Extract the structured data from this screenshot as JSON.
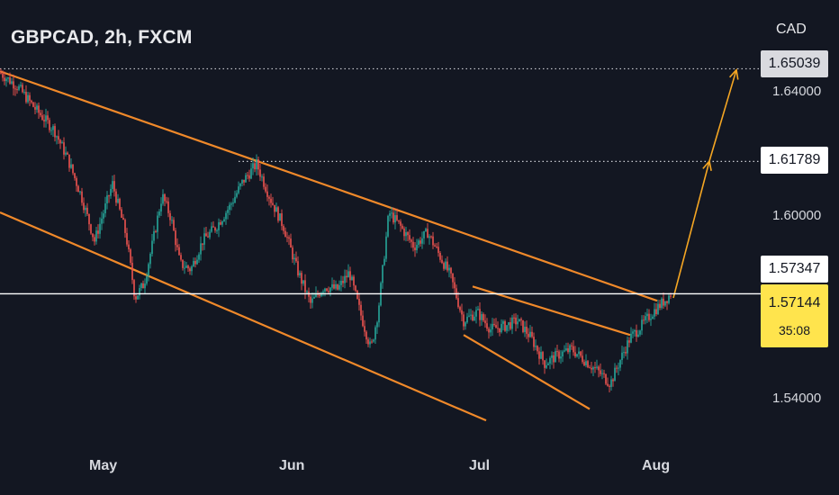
{
  "header": {
    "title": "GBPCAD, 2h, FXCM",
    "currency": "CAD"
  },
  "colors": {
    "background": "#131722",
    "channel": "#f0892a",
    "projection": "#f5a623",
    "up_candle": "#26a69a",
    "down_candle": "#ef5350",
    "current_price_line": "#ffffff",
    "price_tag": "#ffe44d"
  },
  "chart_data": {
    "type": "candlestick",
    "symbol": "GBPCAD",
    "timeframe": "2h",
    "source": "FXCM",
    "x_ticks": [
      "May",
      "Jun",
      "Jul",
      "Aug"
    ],
    "y_ticks": [
      "1.64000",
      "1.60000",
      "1.54000"
    ],
    "y_range": [
      1.52,
      1.665
    ],
    "price_path": [
      [
        0,
        1.649
      ],
      [
        20,
        1.644
      ],
      [
        40,
        1.636
      ],
      [
        60,
        1.629
      ],
      [
        75,
        1.619
      ],
      [
        90,
        1.606
      ],
      [
        105,
        1.59
      ],
      [
        115,
        1.6
      ],
      [
        125,
        1.61
      ],
      [
        140,
        1.592
      ],
      [
        150,
        1.57
      ],
      [
        160,
        1.575
      ],
      [
        170,
        1.59
      ],
      [
        180,
        1.606
      ],
      [
        190,
        1.598
      ],
      [
        200,
        1.582
      ],
      [
        212,
        1.58
      ],
      [
        225,
        1.59
      ],
      [
        240,
        1.595
      ],
      [
        255,
        1.602
      ],
      [
        270,
        1.611
      ],
      [
        285,
        1.617
      ],
      [
        300,
        1.605
      ],
      [
        315,
        1.595
      ],
      [
        330,
        1.58
      ],
      [
        345,
        1.568
      ],
      [
        360,
        1.574
      ],
      [
        375,
        1.573
      ],
      [
        388,
        1.579
      ],
      [
        400,
        1.565
      ],
      [
        412,
        1.552
      ],
      [
        420,
        1.565
      ],
      [
        432,
        1.6
      ],
      [
        445,
        1.595
      ],
      [
        460,
        1.588
      ],
      [
        475,
        1.593
      ],
      [
        488,
        1.585
      ],
      [
        500,
        1.578
      ],
      [
        515,
        1.562
      ],
      [
        530,
        1.565
      ],
      [
        545,
        1.559
      ],
      [
        560,
        1.56
      ],
      [
        575,
        1.562
      ],
      [
        590,
        1.556
      ],
      [
        605,
        1.547
      ],
      [
        620,
        1.55
      ],
      [
        635,
        1.552
      ],
      [
        650,
        1.548
      ],
      [
        665,
        1.544
      ],
      [
        678,
        1.54
      ],
      [
        690,
        1.549
      ],
      [
        700,
        1.556
      ],
      [
        712,
        1.56
      ],
      [
        725,
        1.565
      ],
      [
        738,
        1.569
      ],
      [
        745,
        1.5714
      ]
    ],
    "levels": [
      {
        "name": "target-2",
        "value": 1.65039,
        "label": "1.65039"
      },
      {
        "name": "target-1",
        "value": 1.61789,
        "label": "1.61789"
      },
      {
        "name": "resistance",
        "value": 1.57347,
        "label": "1.57347"
      }
    ],
    "current_price": {
      "value": 1.57144,
      "label": "1.57144",
      "countdown": "35:08"
    },
    "channel_lines": [
      {
        "name": "main-channel-top",
        "points": [
          [
            0,
            1.6495
          ],
          [
            730,
            1.569
          ]
        ]
      },
      {
        "name": "main-channel-bottom",
        "points": [
          [
            0,
            1.6
          ],
          [
            540,
            1.527
          ]
        ]
      },
      {
        "name": "inner-channel-top",
        "points": [
          [
            525,
            1.574
          ],
          [
            700,
            1.557
          ]
        ]
      },
      {
        "name": "inner-channel-bottom",
        "points": [
          [
            515,
            1.557
          ],
          [
            655,
            1.531
          ]
        ]
      }
    ],
    "projection_path": [
      [
        748,
        1.57
      ],
      [
        788,
        1.618
      ],
      [
        818,
        1.65
      ]
    ]
  },
  "axis": {
    "currency": "CAD",
    "tick_labels": [
      "1.64000",
      "1.60000",
      "1.54000"
    ],
    "level_labels": [
      "1.65039",
      "1.61789",
      "1.57347"
    ],
    "price_label": "1.57144",
    "countdown": "35:08",
    "months": [
      "May",
      "Jun",
      "Jul",
      "Aug"
    ]
  }
}
